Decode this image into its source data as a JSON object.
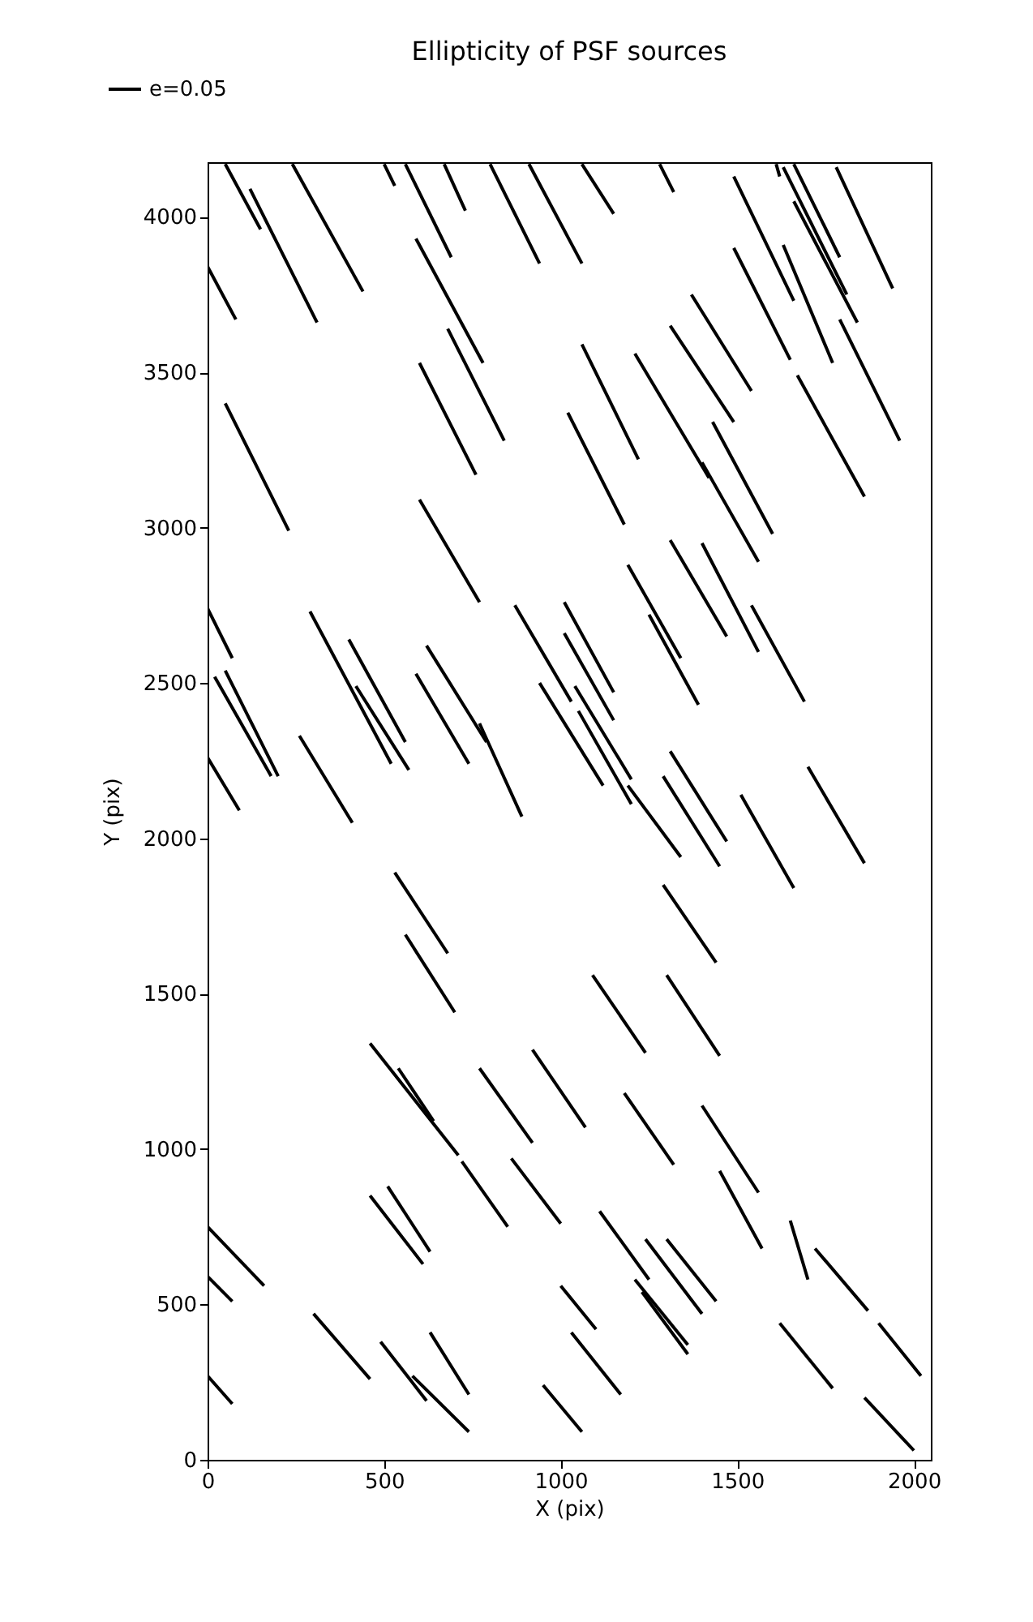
{
  "chart_data": {
    "type": "line",
    "title": "Ellipticity of PSF sources",
    "xlabel": "X (pix)",
    "ylabel": "Y (pix)",
    "xlim": [
      0,
      2048
    ],
    "xticks": [
      0,
      500,
      1000,
      1500,
      2000
    ],
    "ylim": [
      0,
      4176
    ],
    "yticks": [
      0,
      500,
      1000,
      1500,
      2000,
      2500,
      3000,
      3500,
      4000
    ],
    "grid": false,
    "legend": "top left",
    "series": [
      {
        "name": "e=0.05",
        "color": "#000000",
        "x": [
          50,
          150
        ],
        "values": [
          4170,
          3960
        ]
      },
      {
        "color": "#000000",
        "x": [
          120,
          310
        ],
        "values": [
          4090,
          3660
        ]
      },
      {
        "color": "#000000",
        "x": [
          240,
          440
        ],
        "values": [
          4170,
          3760
        ]
      },
      {
        "color": "#000000",
        "x": [
          500,
          530
        ],
        "values": [
          4170,
          4100
        ]
      },
      {
        "color": "#000000",
        "x": [
          560,
          690
        ],
        "values": [
          4170,
          3870
        ]
      },
      {
        "color": "#000000",
        "x": [
          670,
          730
        ],
        "values": [
          4170,
          4020
        ]
      },
      {
        "color": "#000000",
        "x": [
          800,
          940
        ],
        "values": [
          4170,
          3850
        ]
      },
      {
        "color": "#000000",
        "x": [
          910,
          1060
        ],
        "values": [
          4170,
          3850
        ]
      },
      {
        "color": "#000000",
        "x": [
          0,
          80
        ],
        "values": [
          3840,
          3670
        ]
      },
      {
        "color": "#000000",
        "x": [
          590,
          780
        ],
        "values": [
          3930,
          3530
        ]
      },
      {
        "color": "#000000",
        "x": [
          680,
          840
        ],
        "values": [
          3640,
          3280
        ]
      },
      {
        "color": "#000000",
        "x": [
          600,
          760
        ],
        "values": [
          3530,
          3170
        ]
      },
      {
        "color": "#000000",
        "x": [
          1020,
          1180
        ],
        "values": [
          3370,
          3010
        ]
      },
      {
        "color": "#000000",
        "x": [
          50,
          230
        ],
        "values": [
          3400,
          2990
        ]
      },
      {
        "color": "#000000",
        "x": [
          600,
          770
        ],
        "values": [
          3090,
          2760
        ]
      },
      {
        "color": "#000000",
        "x": [
          1060,
          1150
        ],
        "values": [
          4170,
          4010
        ]
      },
      {
        "color": "#000000",
        "x": [
          1280,
          1320
        ],
        "values": [
          4170,
          4080
        ]
      },
      {
        "color": "#000000",
        "x": [
          1490,
          1660
        ],
        "values": [
          4130,
          3730
        ]
      },
      {
        "color": "#000000",
        "x": [
          1610,
          1620
        ],
        "values": [
          4170,
          4130
        ]
      },
      {
        "color": "#000000",
        "x": [
          1630,
          1810
        ],
        "values": [
          4160,
          3750
        ]
      },
      {
        "color": "#000000",
        "x": [
          1660,
          1790
        ],
        "values": [
          4170,
          3870
        ]
      },
      {
        "color": "#000000",
        "x": [
          1660,
          1840
        ],
        "values": [
          4050,
          3660
        ]
      },
      {
        "color": "#000000",
        "x": [
          1780,
          1940
        ],
        "values": [
          4160,
          3770
        ]
      },
      {
        "color": "#000000",
        "x": [
          1630,
          1770
        ],
        "values": [
          3910,
          3530
        ]
      },
      {
        "color": "#000000",
        "x": [
          1490,
          1650
        ],
        "values": [
          3900,
          3540
        ]
      },
      {
        "color": "#000000",
        "x": [
          1370,
          1540
        ],
        "values": [
          3750,
          3440
        ]
      },
      {
        "color": "#000000",
        "x": [
          1310,
          1490
        ],
        "values": [
          3650,
          3340
        ]
      },
      {
        "color": "#000000",
        "x": [
          1790,
          1960
        ],
        "values": [
          3670,
          3280
        ]
      },
      {
        "color": "#000000",
        "x": [
          1060,
          1220
        ],
        "values": [
          3590,
          3220
        ]
      },
      {
        "color": "#000000",
        "x": [
          1210,
          1420
        ],
        "values": [
          3560,
          3160
        ]
      },
      {
        "color": "#000000",
        "x": [
          1430,
          1600
        ],
        "values": [
          3340,
          2980
        ]
      },
      {
        "color": "#000000",
        "x": [
          1400,
          1560
        ],
        "values": [
          3210,
          2890
        ]
      },
      {
        "color": "#000000",
        "x": [
          1670,
          1860
        ],
        "values": [
          3490,
          3100
        ]
      },
      {
        "color": "#000000",
        "x": [
          1190,
          1340
        ],
        "values": [
          2880,
          2580
        ]
      },
      {
        "color": "#000000",
        "x": [
          1310,
          1470
        ],
        "values": [
          2960,
          2650
        ]
      },
      {
        "color": "#000000",
        "x": [
          1400,
          1560
        ],
        "values": [
          2950,
          2600
        ]
      },
      {
        "color": "#000000",
        "x": [
          1540,
          1690
        ],
        "values": [
          2750,
          2440
        ]
      },
      {
        "color": "#000000",
        "x": [
          1010,
          1150
        ],
        "values": [
          2760,
          2470
        ]
      },
      {
        "color": "#000000",
        "x": [
          1010,
          1150
        ],
        "values": [
          2660,
          2380
        ]
      },
      {
        "color": "#000000",
        "x": [
          1040,
          1200
        ],
        "values": [
          2490,
          2190
        ]
      },
      {
        "color": "#000000",
        "x": [
          940,
          1120
        ],
        "values": [
          2500,
          2170
        ]
      },
      {
        "color": "#000000",
        "x": [
          1050,
          1200
        ],
        "values": [
          2410,
          2110
        ]
      },
      {
        "color": "#000000",
        "x": [
          1190,
          1340
        ],
        "values": [
          2170,
          1940
        ]
      },
      {
        "color": "#000000",
        "x": [
          1290,
          1450
        ],
        "values": [
          2200,
          1910
        ]
      },
      {
        "color": "#000000",
        "x": [
          1310,
          1470
        ],
        "values": [
          2280,
          1990
        ]
      },
      {
        "color": "#000000",
        "x": [
          1250,
          1390
        ],
        "values": [
          2720,
          2430
        ]
      },
      {
        "color": "#000000",
        "x": [
          1510,
          1660
        ],
        "values": [
          2140,
          1840
        ]
      },
      {
        "color": "#000000",
        "x": [
          1700,
          1860
        ],
        "values": [
          2230,
          1920
        ]
      },
      {
        "color": "#000000",
        "x": [
          1290,
          1440
        ],
        "values": [
          1850,
          1600
        ]
      },
      {
        "color": "#000000",
        "x": [
          1090,
          1240
        ],
        "values": [
          1560,
          1310
        ]
      },
      {
        "color": "#000000",
        "x": [
          1300,
          1450
        ],
        "values": [
          1560,
          1300
        ]
      },
      {
        "color": "#000000",
        "x": [
          0,
          70
        ],
        "values": [
          2740,
          2580
        ]
      },
      {
        "color": "#000000",
        "x": [
          20,
          180
        ],
        "values": [
          2520,
          2200
        ]
      },
      {
        "color": "#000000",
        "x": [
          50,
          200
        ],
        "values": [
          2540,
          2200
        ]
      },
      {
        "color": "#000000",
        "x": [
          0,
          90
        ],
        "values": [
          2260,
          2090
        ]
      },
      {
        "color": "#000000",
        "x": [
          260,
          410
        ],
        "values": [
          2330,
          2050
        ]
      },
      {
        "color": "#000000",
        "x": [
          290,
          520
        ],
        "values": [
          2730,
          2240
        ]
      },
      {
        "color": "#000000",
        "x": [
          420,
          570
        ],
        "values": [
          2490,
          2220
        ]
      },
      {
        "color": "#000000",
        "x": [
          400,
          560
        ],
        "values": [
          2640,
          2310
        ]
      },
      {
        "color": "#000000",
        "x": [
          590,
          740
        ],
        "values": [
          2530,
          2240
        ]
      },
      {
        "color": "#000000",
        "x": [
          620,
          790
        ],
        "values": [
          2620,
          2310
        ]
      },
      {
        "color": "#000000",
        "x": [
          770,
          890
        ],
        "values": [
          2370,
          2070
        ]
      },
      {
        "color": "#000000",
        "x": [
          870,
          1030
        ],
        "values": [
          2750,
          2440
        ]
      },
      {
        "color": "#000000",
        "x": [
          530,
          680
        ],
        "values": [
          1890,
          1630
        ]
      },
      {
        "color": "#000000",
        "x": [
          560,
          700
        ],
        "values": [
          1690,
          1440
        ]
      },
      {
        "color": "#000000",
        "x": [
          460,
          710
        ],
        "values": [
          1340,
          980
        ]
      },
      {
        "color": "#000000",
        "x": [
          540,
          640
        ],
        "values": [
          1260,
          1090
        ]
      },
      {
        "color": "#000000",
        "x": [
          770,
          920
        ],
        "values": [
          1260,
          1020
        ]
      },
      {
        "color": "#000000",
        "x": [
          920,
          1070
        ],
        "values": [
          1320,
          1070
        ]
      },
      {
        "color": "#000000",
        "x": [
          720,
          850
        ],
        "values": [
          960,
          750
        ]
      },
      {
        "color": "#000000",
        "x": [
          860,
          1000
        ],
        "values": [
          970,
          760
        ]
      },
      {
        "color": "#000000",
        "x": [
          460,
          610
        ],
        "values": [
          850,
          630
        ]
      },
      {
        "color": "#000000",
        "x": [
          510,
          630
        ],
        "values": [
          880,
          670
        ]
      },
      {
        "color": "#000000",
        "x": [
          0,
          160
        ],
        "values": [
          750,
          560
        ]
      },
      {
        "color": "#000000",
        "x": [
          0,
          70
        ],
        "values": [
          590,
          510
        ]
      },
      {
        "color": "#000000",
        "x": [
          300,
          460
        ],
        "values": [
          470,
          260
        ]
      },
      {
        "color": "#000000",
        "x": [
          490,
          620
        ],
        "values": [
          380,
          190
        ]
      },
      {
        "color": "#000000",
        "x": [
          580,
          740
        ],
        "values": [
          270,
          90
        ]
      },
      {
        "color": "#000000",
        "x": [
          630,
          740
        ],
        "values": [
          410,
          210
        ]
      },
      {
        "color": "#000000",
        "x": [
          0,
          70
        ],
        "values": [
          270,
          180
        ]
      },
      {
        "color": "#000000",
        "x": [
          950,
          1060
        ],
        "values": [
          240,
          90
        ]
      },
      {
        "color": "#000000",
        "x": [
          1000,
          1100
        ],
        "values": [
          560,
          420
        ]
      },
      {
        "color": "#000000",
        "x": [
          1030,
          1170
        ],
        "values": [
          410,
          210
        ]
      },
      {
        "color": "#000000",
        "x": [
          1180,
          1320
        ],
        "values": [
          1180,
          950
        ]
      },
      {
        "color": "#000000",
        "x": [
          1400,
          1560
        ],
        "values": [
          1140,
          860
        ]
      },
      {
        "color": "#000000",
        "x": [
          1450,
          1570
        ],
        "values": [
          930,
          680
        ]
      },
      {
        "color": "#000000",
        "x": [
          1110,
          1250
        ],
        "values": [
          800,
          580
        ]
      },
      {
        "color": "#000000",
        "x": [
          1240,
          1400
        ],
        "values": [
          710,
          470
        ]
      },
      {
        "color": "#000000",
        "x": [
          1300,
          1440
        ],
        "values": [
          710,
          510
        ]
      },
      {
        "color": "#000000",
        "x": [
          1210,
          1360
        ],
        "values": [
          580,
          370
        ]
      },
      {
        "color": "#000000",
        "x": [
          1230,
          1360
        ],
        "values": [
          540,
          340
        ]
      },
      {
        "color": "#000000",
        "x": [
          1650,
          1700
        ],
        "values": [
          770,
          580
        ]
      },
      {
        "color": "#000000",
        "x": [
          1720,
          1870
        ],
        "values": [
          680,
          480
        ]
      },
      {
        "color": "#000000",
        "x": [
          1900,
          2020
        ],
        "values": [
          440,
          270
        ]
      },
      {
        "color": "#000000",
        "x": [
          1620,
          1770
        ],
        "values": [
          440,
          230
        ]
      },
      {
        "color": "#000000",
        "x": [
          1860,
          2000
        ],
        "values": [
          200,
          30
        ]
      }
    ]
  }
}
